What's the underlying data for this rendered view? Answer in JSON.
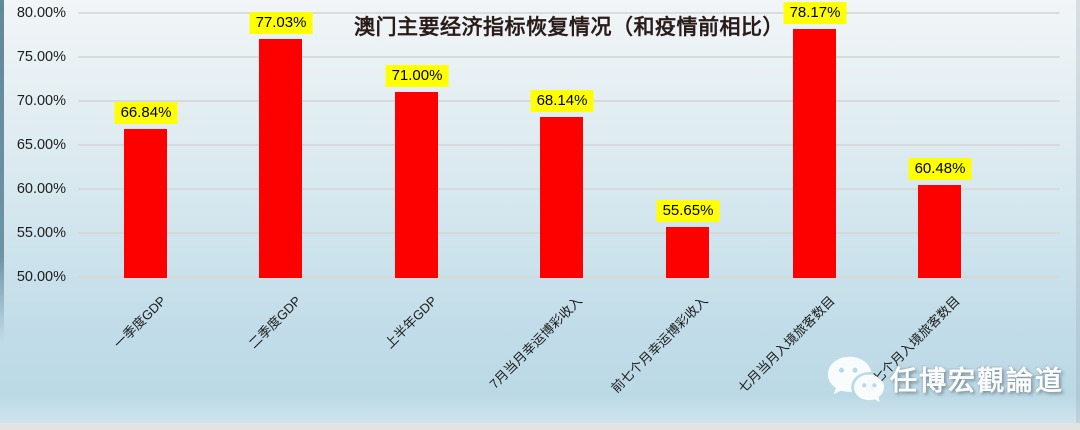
{
  "chart_data": {
    "type": "bar",
    "title": "澳门主要经济指标恢复情况（和疫情前相比）",
    "categories": [
      "一季度GDP",
      "二季度GDP",
      "上半年GDP",
      "7月当月幸运博彩收入",
      "前七个月幸运博彩收入",
      "七月当月入境旅客数目",
      "前七个月入境旅客数目"
    ],
    "values": [
      66.84,
      77.03,
      71.0,
      68.14,
      55.65,
      78.17,
      60.48
    ],
    "data_labels": [
      "66.84%",
      "77.03%",
      "71.00%",
      "68.14%",
      "55.65%",
      "78.17%",
      "60.48%"
    ],
    "y_ticks": {
      "labels": [
        "80.00%",
        "75.00%",
        "70.00%",
        "65.00%",
        "60.00%",
        "55.00%",
        "50.00%"
      ],
      "values": [
        80,
        75,
        70,
        65,
        60,
        55,
        50
      ]
    },
    "ylim": [
      50,
      80
    ],
    "grid": true,
    "legend_position": "none",
    "colors": {
      "bar": "#FC0100",
      "data_label_bg": "#FFFF00",
      "data_label_text": "#000000",
      "title_text": "#2a1c1a",
      "axis_text": "#1c1c1c",
      "gridline": "#d5d7d6"
    }
  },
  "watermark": {
    "text": "任博宏觀論道",
    "icon": "wechat-icon"
  }
}
